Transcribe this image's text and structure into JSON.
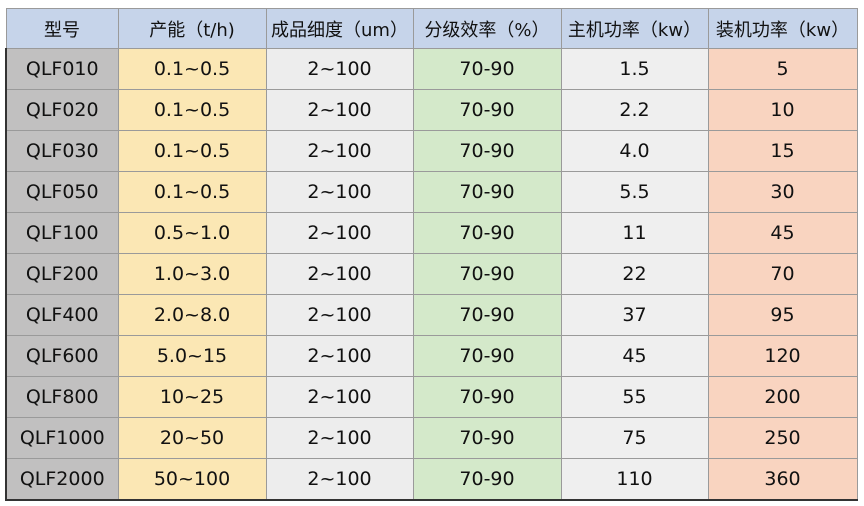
{
  "headers": [
    "型号",
    "产能（t/h)",
    "成品细度（um）",
    "分级效率（%）",
    "主机功率（kw）",
    "装机功率（kw）"
  ],
  "rows": [
    [
      "QLF010",
      "0.1~0.5",
      "2~100",
      "70-90",
      "1.5",
      "5"
    ],
    [
      "QLF020",
      "0.1~0.5",
      "2~100",
      "70-90",
      "2.2",
      "10"
    ],
    [
      "QLF030",
      "0.1~0.5",
      "2~100",
      "70-90",
      "4.0",
      "15"
    ],
    [
      "QLF050",
      "0.1~0.5",
      "2~100",
      "70-90",
      "5.5",
      "30"
    ],
    [
      "QLF100",
      "0.5~1.0",
      "2~100",
      "70-90",
      "11",
      "45"
    ],
    [
      "QLF200",
      "1.0~3.0",
      "2~100",
      "70-90",
      "22",
      "70"
    ],
    [
      "QLF400",
      "2.0~8.0",
      "2~100",
      "70-90",
      "37",
      "95"
    ],
    [
      "QLF600",
      "5.0~15",
      "2~100",
      "70-90",
      "45",
      "120"
    ],
    [
      "QLF800",
      "10~25",
      "2~100",
      "70-90",
      "55",
      "200"
    ],
    [
      "QLF1000",
      "20~50",
      "2~100",
      "70-90",
      "75",
      "250"
    ],
    [
      "QLF2000",
      "50~100",
      "2~100",
      "70-90",
      "110",
      "360"
    ]
  ],
  "colors": {
    "header": "#c6d4ea",
    "model": "#c1c0c0",
    "capacity": "#fbe7b4",
    "fineness": "#ededed",
    "efficiency": "#d4e9ca",
    "main_power": "#efefef",
    "installed_power": "#f9d4c0"
  }
}
